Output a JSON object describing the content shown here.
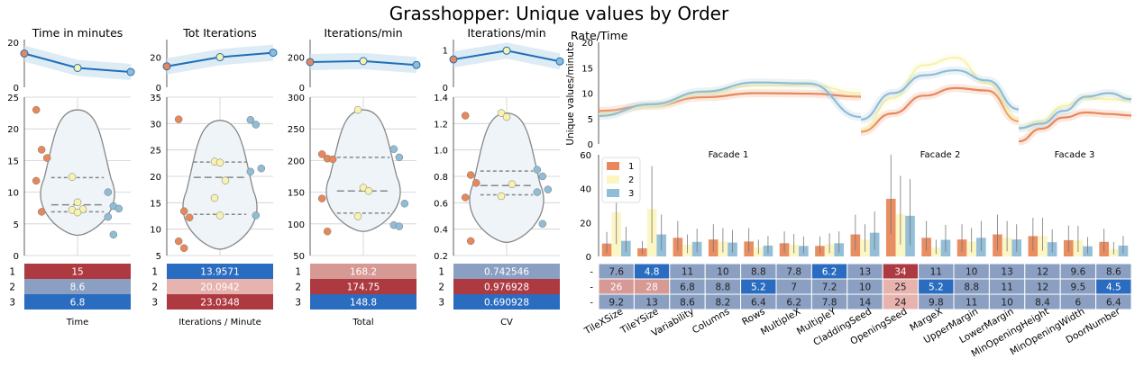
{
  "title": "Grasshopper: Unique values by Order",
  "colors": {
    "o1": "#e8875a",
    "o2": "#f7f3ae",
    "o3": "#8fbcd6",
    "line": "#1f6fb8",
    "band": "#cfe3f1",
    "violet": "#eef4f8",
    "red": "#ae3a41",
    "pink": "#d79994",
    "lightpink": "#e6b3ae",
    "grayblue": "#8a9fc2",
    "blue": "#2a6cc0"
  },
  "left_panels": [
    {
      "title": "Time in minutes",
      "xlabel": "Time",
      "top_yticks": [
        "0",
        "20"
      ],
      "top_ylim": [
        0,
        20
      ],
      "top_points": [
        15,
        8.6,
        6.8
      ],
      "yticks": [
        "0",
        "5",
        "10",
        "15",
        "20",
        "25"
      ],
      "ylim": [
        0,
        25
      ],
      "points": [
        [
          23,
          16.7,
          15.4,
          11.8,
          6.9
        ],
        [
          12.4,
          8.4,
          7.3,
          7.2,
          6.8
        ],
        [
          10,
          7.8,
          7.4,
          6.1,
          3.3
        ]
      ],
      "quartiles": [
        12.3,
        8,
        6.9
      ],
      "violin": [
        3.2,
        23
      ],
      "table": [
        {
          "v": "15",
          "c": "red"
        },
        {
          "v": "8.6",
          "c": "grayblue"
        },
        {
          "v": "6.8",
          "c": "blue"
        }
      ]
    },
    {
      "title": "Tot Iterations",
      "xlabel": "Iterations / Minute",
      "top_yticks": [
        "0",
        "20"
      ],
      "top_ylim": [
        0,
        30
      ],
      "top_points": [
        13.9571,
        20.0942,
        23.0348
      ],
      "yticks": [
        "5",
        "10",
        "15",
        "20",
        "25",
        "30",
        "35"
      ],
      "ylim": [
        5,
        35
      ],
      "points": [
        [
          30.8,
          13.4,
          12.2,
          7.7,
          6.4
        ],
        [
          22.8,
          22.6,
          19.2,
          15.9,
          12.6
        ],
        [
          30.7,
          29.8,
          21.5,
          20.9,
          12.6
        ]
      ],
      "quartiles": [
        22.7,
        19.8,
        12.8
      ],
      "violin": [
        6.2,
        30.6
      ],
      "table": [
        {
          "v": "13.9571",
          "c": "blue"
        },
        {
          "v": "20.0942",
          "c": "lightpink"
        },
        {
          "v": "23.0348",
          "c": "red"
        }
      ]
    },
    {
      "title": "Iterations/min",
      "xlabel": "Total",
      "top_yticks": [
        "0",
        "200"
      ],
      "top_ylim": [
        0,
        300
      ],
      "top_points": [
        168.2,
        174.75,
        148.8
      ],
      "yticks": [
        "50",
        "100",
        "150",
        "200",
        "250",
        "300"
      ],
      "ylim": [
        50,
        300
      ],
      "points": [
        [
          210,
          203,
          202,
          140,
          88
        ],
        [
          280,
          157,
          152,
          112
        ],
        [
          218,
          205,
          132,
          98,
          96
        ]
      ],
      "quartiles": [
        205,
        152,
        117
      ],
      "violin": [
        88,
        280
      ],
      "table": [
        {
          "v": "168.2",
          "c": "pink"
        },
        {
          "v": "174.75",
          "c": "red"
        },
        {
          "v": "148.8",
          "c": "blue"
        }
      ]
    },
    {
      "title": "Iterations/min",
      "xlabel": "CV",
      "top_yticks": [
        "0",
        "1"
      ],
      "top_ylim": [
        0,
        1.2
      ],
      "top_points": [
        0.742546,
        0.976928,
        0.690928
      ],
      "yticks": [
        "0.2",
        "0.4",
        "0.6",
        "0.8",
        "1.0",
        "1.2",
        "1.4"
      ],
      "ylim": [
        0.2,
        1.4
      ],
      "points": [
        [
          1.26,
          0.81,
          0.75,
          0.64,
          0.31
        ],
        [
          1.28,
          1.25,
          0.74,
          0.65
        ],
        [
          0.85,
          0.8,
          0.7,
          0.68,
          0.44
        ]
      ],
      "quartiles": [
        0.84,
        0.73,
        0.66
      ],
      "violin": [
        0.3,
        1.28
      ],
      "table": [
        {
          "v": "0.742546",
          "c": "grayblue"
        },
        {
          "v": "0.976928",
          "c": "red"
        },
        {
          "v": "0.690928",
          "c": "blue"
        }
      ]
    }
  ],
  "table_rows": [
    "1",
    "2",
    "3"
  ],
  "rate": {
    "title": "Rate/Time",
    "ylabel": "Unique values/minute",
    "yticks": [
      "0",
      "5",
      "10",
      "15",
      "20"
    ],
    "ylim": [
      0,
      20
    ],
    "facades": [
      "Facade 1",
      "Facade 2",
      "Facade 3"
    ]
  },
  "bars": {
    "yticks": [
      "0",
      "20",
      "40",
      "60"
    ],
    "ylim": [
      0,
      60
    ],
    "legend": [
      "1",
      "2",
      "3"
    ],
    "categories": [
      "TileXSize",
      "TileYSize",
      "Variability",
      "Columns",
      "Rows",
      "MultipleX",
      "MultipleY",
      "CladdingSeed",
      "OpeningSeed",
      "MargeX",
      "UpperMargin",
      "LowerMargin",
      "MinOpeningHeight",
      "MinOpeningWidth",
      "DoorNumber"
    ],
    "series": [
      {
        "name": "1",
        "values": [
          7.6,
          4.8,
          11,
          10,
          8.8,
          7.8,
          6.2,
          13,
          34,
          11,
          10,
          13,
          12,
          9.6,
          8.6
        ]
      },
      {
        "name": "2",
        "values": [
          26,
          28,
          6.8,
          8.8,
          5.2,
          7,
          7.2,
          10,
          25,
          5.2,
          8.8,
          11,
          12,
          9.5,
          4.5
        ]
      },
      {
        "name": "3",
        "values": [
          9.2,
          13,
          8.6,
          8.2,
          6.4,
          6.2,
          7.8,
          14,
          24,
          9.8,
          11,
          10,
          8.4,
          6,
          6.4
        ]
      }
    ],
    "table_colors": [
      [
        "grayblue",
        "blue",
        "grayblue",
        "grayblue",
        "grayblue",
        "grayblue",
        "blue",
        "grayblue",
        "red",
        "grayblue",
        "grayblue",
        "grayblue",
        "grayblue",
        "grayblue",
        "grayblue"
      ],
      [
        "pink",
        "pink",
        "grayblue",
        "grayblue",
        "blue",
        "grayblue",
        "grayblue",
        "grayblue",
        "lightpink",
        "blue",
        "grayblue",
        "grayblue",
        "grayblue",
        "grayblue",
        "blue"
      ],
      [
        "grayblue",
        "grayblue",
        "grayblue",
        "grayblue",
        "grayblue",
        "grayblue",
        "grayblue",
        "grayblue",
        "lightpink",
        "grayblue",
        "grayblue",
        "grayblue",
        "grayblue",
        "grayblue",
        "grayblue"
      ]
    ]
  }
}
